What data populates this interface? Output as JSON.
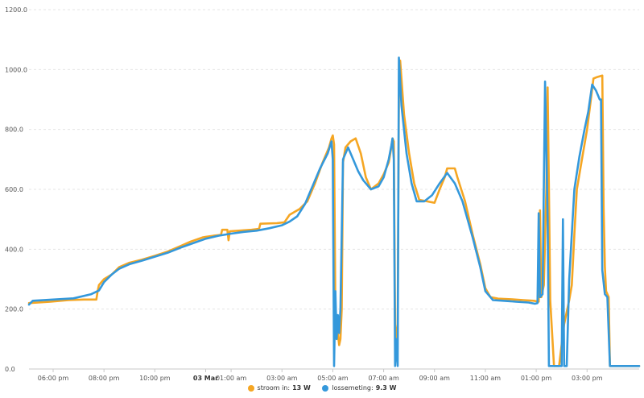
{
  "chart_data": {
    "type": "line",
    "y_ticks": [
      "0.0",
      "200.0",
      "400.0",
      "600.0",
      "800.0",
      "1000.0",
      "1200.0"
    ],
    "ylim": [
      0,
      1200
    ],
    "grid": true,
    "x_ticks": [
      {
        "label": "06:00 pm",
        "h": 18
      },
      {
        "label": "08:00 pm",
        "h": 20
      },
      {
        "label": "10:00 pm",
        "h": 22
      },
      {
        "label": "03 Mar",
        "h": 24,
        "bold": true
      },
      {
        "label": "01:00 am",
        "h": 25
      },
      {
        "label": "03:00 am",
        "h": 27
      },
      {
        "label": "05:00 am",
        "h": 29
      },
      {
        "label": "07:00 am",
        "h": 31
      },
      {
        "label": "09:00 am",
        "h": 33
      },
      {
        "label": "11:00 am",
        "h": 35
      },
      {
        "label": "01:00 pm",
        "h": 37
      },
      {
        "label": "03:00 pm",
        "h": 39
      }
    ],
    "xlim_hours": [
      17.05,
      41.05
    ],
    "series": [
      {
        "name": "stroom in",
        "legend_value": "13 W",
        "color": "#f5a623",
        "points": [
          [
            17.05,
            220
          ],
          [
            17.9,
            225
          ],
          [
            18.6,
            230
          ],
          [
            19.2,
            232
          ],
          [
            19.7,
            232
          ],
          [
            19.75,
            260
          ],
          [
            19.8,
            280
          ],
          [
            20.0,
            300
          ],
          [
            20.3,
            315
          ],
          [
            20.6,
            340
          ],
          [
            21.0,
            355
          ],
          [
            21.5,
            365
          ],
          [
            22.0,
            378
          ],
          [
            22.5,
            392
          ],
          [
            23.0,
            410
          ],
          [
            23.4,
            425
          ],
          [
            23.9,
            440
          ],
          [
            24.3,
            445
          ],
          [
            24.6,
            448
          ],
          [
            24.65,
            465
          ],
          [
            24.85,
            465
          ],
          [
            24.9,
            430
          ],
          [
            24.95,
            460
          ],
          [
            25.3,
            462
          ],
          [
            25.8,
            465
          ],
          [
            26.1,
            468
          ],
          [
            26.15,
            485
          ],
          [
            26.8,
            487
          ],
          [
            27.1,
            490
          ],
          [
            27.3,
            515
          ],
          [
            27.7,
            535
          ],
          [
            28.0,
            560
          ],
          [
            28.3,
            620
          ],
          [
            28.6,
            690
          ],
          [
            28.85,
            740
          ],
          [
            28.95,
            770
          ],
          [
            29.0,
            780
          ],
          [
            29.05,
            750
          ],
          [
            29.1,
            200
          ],
          [
            29.15,
            100
          ],
          [
            29.2,
            120
          ],
          [
            29.25,
            80
          ],
          [
            29.3,
            100
          ],
          [
            29.35,
            200
          ],
          [
            29.4,
            690
          ],
          [
            29.5,
            740
          ],
          [
            29.7,
            760
          ],
          [
            29.9,
            770
          ],
          [
            30.1,
            720
          ],
          [
            30.3,
            640
          ],
          [
            30.5,
            600
          ],
          [
            30.8,
            620
          ],
          [
            31.0,
            650
          ],
          [
            31.2,
            690
          ],
          [
            31.3,
            740
          ],
          [
            31.35,
            770
          ],
          [
            31.4,
            760
          ],
          [
            31.45,
            150
          ],
          [
            31.5,
            90
          ],
          [
            31.55,
            150
          ],
          [
            31.6,
            900
          ],
          [
            31.65,
            1030
          ],
          [
            31.8,
            850
          ],
          [
            32.0,
            720
          ],
          [
            32.2,
            620
          ],
          [
            32.4,
            565
          ],
          [
            32.7,
            560
          ],
          [
            33.0,
            555
          ],
          [
            33.2,
            600
          ],
          [
            33.4,
            640
          ],
          [
            33.5,
            670
          ],
          [
            33.8,
            670
          ],
          [
            33.9,
            640
          ],
          [
            34.2,
            560
          ],
          [
            34.5,
            450
          ],
          [
            34.8,
            350
          ],
          [
            35.0,
            270
          ],
          [
            35.2,
            240
          ],
          [
            35.5,
            235
          ],
          [
            36.0,
            233
          ],
          [
            36.5,
            230
          ],
          [
            36.9,
            228
          ],
          [
            37.1,
            225
          ],
          [
            37.15,
            530
          ],
          [
            37.2,
            240
          ],
          [
            37.3,
            280
          ],
          [
            37.4,
            600
          ],
          [
            37.45,
            940
          ],
          [
            37.5,
            600
          ],
          [
            37.55,
            230
          ],
          [
            37.7,
            10
          ],
          [
            37.9,
            10
          ],
          [
            38.1,
            150
          ],
          [
            38.3,
            230
          ],
          [
            38.4,
            280
          ],
          [
            38.5,
            450
          ],
          [
            38.6,
            600
          ],
          [
            38.8,
            700
          ],
          [
            39.0,
            800
          ],
          [
            39.15,
            900
          ],
          [
            39.25,
            970
          ],
          [
            39.4,
            975
          ],
          [
            39.6,
            980
          ],
          [
            39.65,
            540
          ],
          [
            39.7,
            340
          ],
          [
            39.75,
            260
          ],
          [
            39.85,
            240
          ],
          [
            39.9,
            10
          ],
          [
            41.05,
            10
          ]
        ]
      },
      {
        "name": "lossemeting",
        "legend_value": "9.3 W",
        "color": "#3498db",
        "points": [
          [
            17.05,
            215
          ],
          [
            17.2,
            228
          ],
          [
            18.0,
            232
          ],
          [
            18.8,
            236
          ],
          [
            19.5,
            250
          ],
          [
            19.8,
            262
          ],
          [
            20.0,
            290
          ],
          [
            20.3,
            315
          ],
          [
            20.6,
            335
          ],
          [
            21.0,
            350
          ],
          [
            21.5,
            362
          ],
          [
            22.0,
            375
          ],
          [
            22.5,
            388
          ],
          [
            23.0,
            405
          ],
          [
            23.5,
            420
          ],
          [
            24.0,
            435
          ],
          [
            24.5,
            445
          ],
          [
            25.0,
            452
          ],
          [
            25.5,
            458
          ],
          [
            26.0,
            462
          ],
          [
            26.5,
            470
          ],
          [
            27.0,
            480
          ],
          [
            27.3,
            492
          ],
          [
            27.6,
            510
          ],
          [
            27.9,
            550
          ],
          [
            28.2,
            610
          ],
          [
            28.5,
            670
          ],
          [
            28.8,
            720
          ],
          [
            28.95,
            760
          ],
          [
            29.0,
            700
          ],
          [
            29.05,
            10
          ],
          [
            29.1,
            260
          ],
          [
            29.15,
            100
          ],
          [
            29.2,
            180
          ],
          [
            29.25,
            120
          ],
          [
            29.3,
            200
          ],
          [
            29.4,
            700
          ],
          [
            29.6,
            740
          ],
          [
            29.8,
            700
          ],
          [
            30.0,
            660
          ],
          [
            30.2,
            630
          ],
          [
            30.5,
            600
          ],
          [
            30.8,
            610
          ],
          [
            31.0,
            640
          ],
          [
            31.2,
            700
          ],
          [
            31.3,
            745
          ],
          [
            31.35,
            770
          ],
          [
            31.4,
            700
          ],
          [
            31.45,
            10
          ],
          [
            31.5,
            100
          ],
          [
            31.55,
            10
          ],
          [
            31.6,
            1040
          ],
          [
            31.7,
            880
          ],
          [
            31.9,
            720
          ],
          [
            32.1,
            620
          ],
          [
            32.3,
            560
          ],
          [
            32.6,
            560
          ],
          [
            32.9,
            580
          ],
          [
            33.2,
            620
          ],
          [
            33.5,
            655
          ],
          [
            33.8,
            620
          ],
          [
            34.1,
            560
          ],
          [
            34.5,
            440
          ],
          [
            34.8,
            340
          ],
          [
            35.0,
            260
          ],
          [
            35.3,
            230
          ],
          [
            35.7,
            228
          ],
          [
            36.2,
            225
          ],
          [
            36.7,
            222
          ],
          [
            36.95,
            218
          ],
          [
            37.05,
            220
          ],
          [
            37.1,
            520
          ],
          [
            37.15,
            240
          ],
          [
            37.25,
            250
          ],
          [
            37.35,
            960
          ],
          [
            37.45,
            500
          ],
          [
            37.5,
            10
          ],
          [
            37.7,
            10
          ],
          [
            38.0,
            10
          ],
          [
            38.05,
            500
          ],
          [
            38.1,
            10
          ],
          [
            38.2,
            10
          ],
          [
            38.3,
            300
          ],
          [
            38.5,
            600
          ],
          [
            38.7,
            710
          ],
          [
            38.9,
            800
          ],
          [
            39.05,
            860
          ],
          [
            39.2,
            950
          ],
          [
            39.35,
            930
          ],
          [
            39.5,
            900
          ],
          [
            39.55,
            900
          ],
          [
            39.6,
            330
          ],
          [
            39.7,
            250
          ],
          [
            39.8,
            240
          ],
          [
            39.9,
            10
          ],
          [
            41.05,
            10
          ]
        ]
      }
    ]
  }
}
